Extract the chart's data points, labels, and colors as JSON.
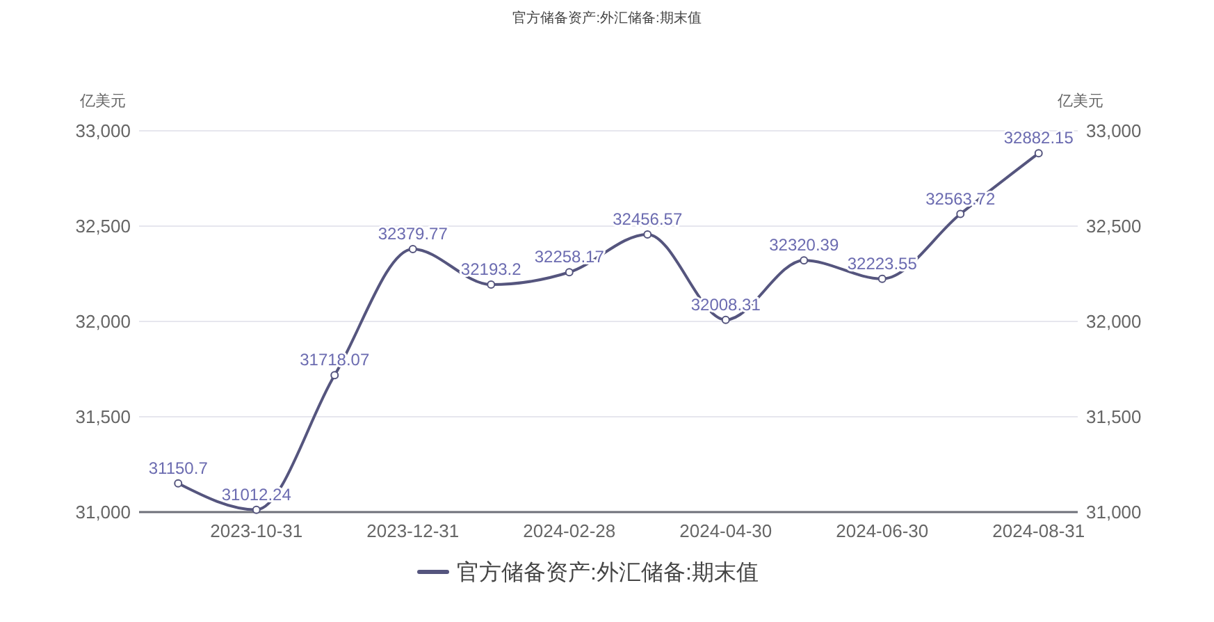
{
  "chart_data": {
    "type": "line",
    "title": "官方储备资产:外汇储备:期末值",
    "ylabel": "亿美元",
    "y2label": "亿美元",
    "categories": [
      null,
      "2023-10-31",
      null,
      "2023-12-31",
      null,
      "2024-02-28",
      null,
      "2024-04-30",
      null,
      "2024-06-30",
      null,
      "2024-08-31"
    ],
    "series": [
      {
        "name": "官方储备资产:外汇储备:期末值",
        "color": "#55557e",
        "values": [
          31150.7,
          31012.24,
          31718.07,
          32379.77,
          32193.2,
          32258.17,
          32456.57,
          32008.31,
          32320.39,
          32223.55,
          32563.72,
          32882.15
        ]
      }
    ],
    "ylim": [
      31000,
      33000
    ],
    "yticks": [
      {
        "value": 31000,
        "label": "31,000"
      },
      {
        "value": 31500,
        "label": "31,500"
      },
      {
        "value": 32000,
        "label": "32,000"
      },
      {
        "value": 32500,
        "label": "32,500"
      },
      {
        "value": 33000,
        "label": "33,000"
      }
    ],
    "y2lim": [
      31000,
      33000
    ],
    "y2ticks": [
      {
        "value": 31000,
        "label": "31,000"
      },
      {
        "value": 31500,
        "label": "31,500"
      },
      {
        "value": 32000,
        "label": "32,000"
      },
      {
        "value": 32500,
        "label": "32,500"
      },
      {
        "value": 33000,
        "label": "33,000"
      }
    ],
    "grid": "y",
    "legend": "bottom",
    "marker": "circle",
    "line_style": "solid",
    "data_labels": true
  }
}
